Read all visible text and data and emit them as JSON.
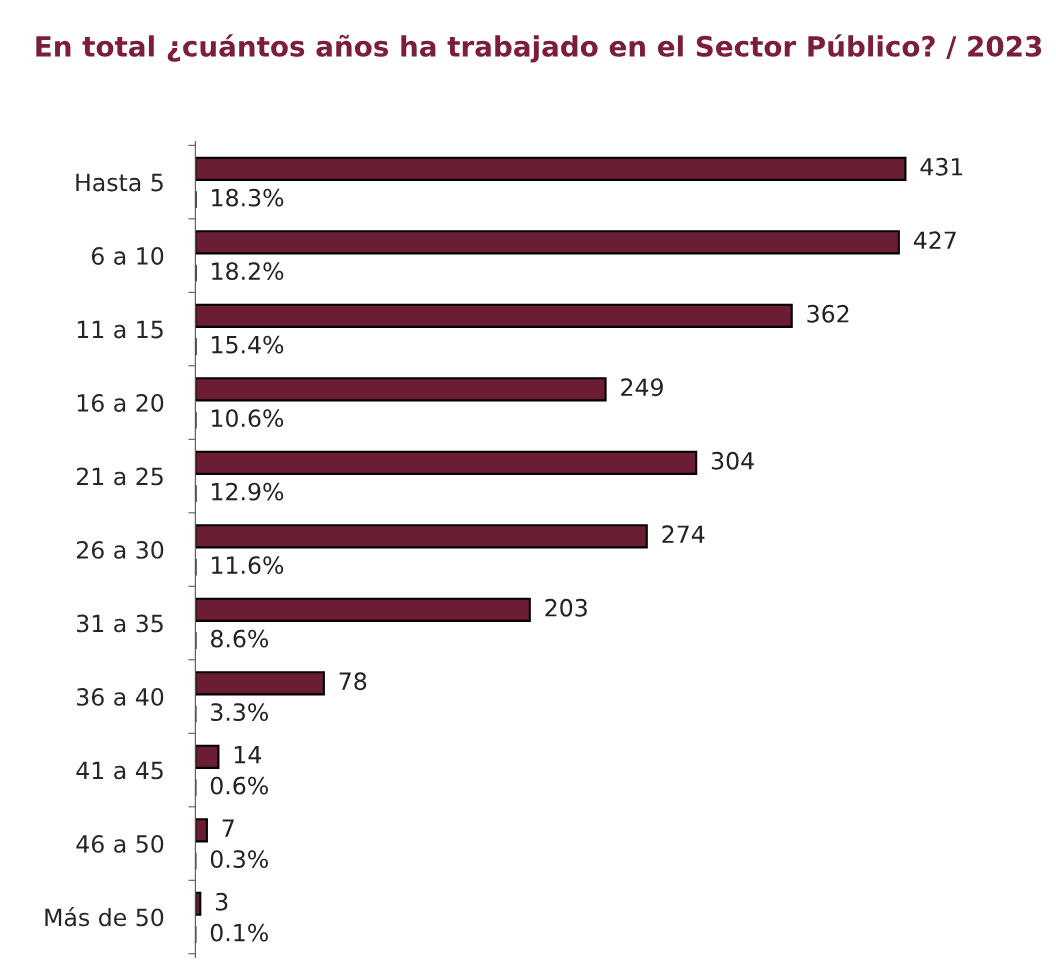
{
  "chart_data": {
    "type": "bar",
    "orientation": "horizontal",
    "title": "En total ¿cuántos años ha trabajado en el Sector Público? / 2023",
    "categories": [
      "Hasta 5",
      "6 a 10",
      "11 a 15",
      "16 a 20",
      "21 a 25",
      "26 a 30",
      "31 a 35",
      "36 a 40",
      "41 a 45",
      "46 a 50",
      "Más de 50"
    ],
    "series": [
      {
        "color": "#6b1e33",
        "values": [
          431,
          427,
          362,
          249,
          304,
          274,
          203,
          78,
          14,
          7,
          3
        ]
      },
      {
        "color": "#000000",
        "values": [
          0.183,
          0.182,
          0.154,
          0.106,
          0.129,
          0.116,
          0.086,
          0.033,
          0.006,
          0.003,
          0.001
        ],
        "value_labels": [
          "18.3%",
          "18.2%",
          "15.4%",
          "10.6%",
          "12.9%",
          "11.6%",
          "8.6%",
          "3.3%",
          "0.6%",
          "0.3%",
          "0.1%"
        ]
      }
    ],
    "data_labels": true,
    "tick_labels": "y",
    "grid": false,
    "legend": false
  }
}
